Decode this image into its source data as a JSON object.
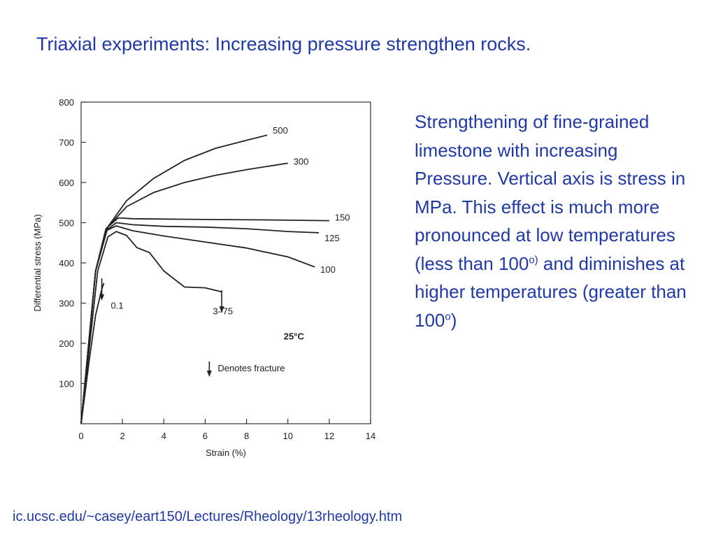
{
  "slide": {
    "title": "Triaxial experiments: Increasing pressure strengthen rocks.",
    "description": {
      "part1": "Strengthening of fine-grained limestone with increasing Pressure. Vertical axis is stress in MPa. This effect is much more pronounced at low temperatures (less than 100",
      "sup1": "o)",
      "part2": " and diminishes at higher temperatures (greater than 100",
      "sup2": "o",
      "part3": ")"
    },
    "source": "ic.ucsc.edu/~casey/eart150/Lectures/Rheology/13rheology.htm"
  },
  "chart_data": {
    "type": "line",
    "title": "",
    "xlabel": "Strain (%)",
    "ylabel": "Differential stress (MPa)",
    "xlim": [
      0,
      14
    ],
    "ylim": [
      0,
      800
    ],
    "x_ticks": [
      0,
      2,
      4,
      6,
      8,
      10,
      12,
      14
    ],
    "y_ticks": [
      100,
      200,
      300,
      400,
      500,
      600,
      700,
      800
    ],
    "grid": false,
    "annotations": {
      "temperature": "25°C",
      "fracture_legend": "Denotes fracture"
    },
    "series": [
      {
        "name": "500",
        "color": "#222222",
        "points": [
          [
            0,
            0
          ],
          [
            0.7,
            380
          ],
          [
            1.3,
            490
          ],
          [
            2.2,
            555
          ],
          [
            3.5,
            610
          ],
          [
            5,
            655
          ],
          [
            6.5,
            685
          ],
          [
            8,
            705
          ],
          [
            9,
            718
          ]
        ]
      },
      {
        "name": "300",
        "color": "#222222",
        "points": [
          [
            0,
            0
          ],
          [
            0.7,
            380
          ],
          [
            1.3,
            490
          ],
          [
            2.2,
            540
          ],
          [
            3.5,
            575
          ],
          [
            5,
            600
          ],
          [
            6.5,
            618
          ],
          [
            8,
            632
          ],
          [
            10,
            648
          ]
        ]
      },
      {
        "name": "150",
        "color": "#222222",
        "points": [
          [
            0,
            0
          ],
          [
            0.7,
            380
          ],
          [
            1.2,
            485
          ],
          [
            1.8,
            512
          ],
          [
            2.5,
            510
          ],
          [
            4,
            509
          ],
          [
            6,
            508
          ],
          [
            9,
            507
          ],
          [
            12,
            505
          ]
        ]
      },
      {
        "name": "125",
        "color": "#222222",
        "points": [
          [
            0,
            0
          ],
          [
            0.7,
            380
          ],
          [
            1.2,
            480
          ],
          [
            1.7,
            500
          ],
          [
            2.5,
            495
          ],
          [
            4,
            491
          ],
          [
            6,
            489
          ],
          [
            8,
            485
          ],
          [
            10,
            478
          ],
          [
            11.5,
            475
          ]
        ]
      },
      {
        "name": "100",
        "color": "#222222",
        "points": [
          [
            0,
            0
          ],
          [
            0.7,
            380
          ],
          [
            1.2,
            480
          ],
          [
            1.7,
            492
          ],
          [
            2.5,
            480
          ],
          [
            4,
            467
          ],
          [
            6,
            452
          ],
          [
            8,
            437
          ],
          [
            10,
            415
          ],
          [
            11.3,
            390
          ]
        ]
      },
      {
        "name": "3-75",
        "color": "#222222",
        "points": [
          [
            0,
            0
          ],
          [
            0.8,
            380
          ],
          [
            1.3,
            465
          ],
          [
            1.7,
            478
          ],
          [
            2.2,
            468
          ],
          [
            2.7,
            438
          ],
          [
            3.3,
            426
          ],
          [
            4,
            380
          ],
          [
            5,
            340
          ],
          [
            6,
            338
          ],
          [
            6.8,
            328
          ]
        ]
      },
      {
        "name": "0.1",
        "color": "#222222",
        "points": [
          [
            0,
            0
          ],
          [
            0.4,
            160
          ],
          [
            0.7,
            270
          ],
          [
            1,
            335
          ],
          [
            1.1,
            350
          ]
        ]
      }
    ],
    "fractures": [
      {
        "series": "0.1",
        "x": 1.0,
        "y_top": 355
      },
      {
        "series": "3-75",
        "x": 6.8,
        "y_top": 325
      }
    ]
  }
}
